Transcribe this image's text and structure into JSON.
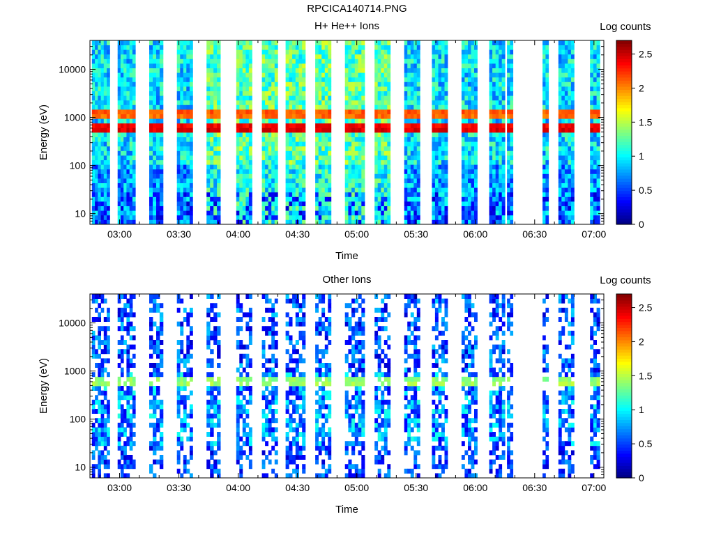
{
  "page_title": "RPCICA140714.PNG",
  "chart_data": [
    {
      "type": "heatmap",
      "title": "H+ He++ Ions",
      "xlabel": "Time",
      "ylabel": "Energy (eV)",
      "x_ticks": [
        "03:00",
        "03:30",
        "04:00",
        "04:30",
        "05:00",
        "05:30",
        "06:00",
        "06:30",
        "07:00"
      ],
      "y_ticks": [
        "10",
        "100",
        "1000",
        "10000"
      ],
      "y_scale": "log",
      "ylim": [
        6,
        40000
      ],
      "xlim": [
        "02:45",
        "07:05"
      ],
      "colorbar_label": "Log counts",
      "colorbar_ticks": [
        "0",
        "0.5",
        "1",
        "1.5",
        "2",
        "2.5"
      ],
      "colorbar_range": [
        0,
        2.7
      ],
      "colormap": "jet",
      "data_time_windows": [
        [
          "02:46",
          "02:55"
        ],
        [
          "02:59",
          "03:08"
        ],
        [
          "03:15",
          "03:22"
        ],
        [
          "03:29",
          "03:37"
        ],
        [
          "03:44",
          "03:51"
        ],
        [
          "03:59",
          "04:07"
        ],
        [
          "04:12",
          "04:20"
        ],
        [
          "04:24",
          "04:34"
        ],
        [
          "04:39",
          "04:47"
        ],
        [
          "04:54",
          "05:04"
        ],
        [
          "05:09",
          "05:17"
        ],
        [
          "05:24",
          "05:32"
        ],
        [
          "05:38",
          "05:46"
        ],
        [
          "05:53",
          "06:01"
        ],
        [
          "06:07",
          "06:15"
        ],
        [
          "06:16",
          "06:19"
        ],
        [
          "06:34",
          "06:37"
        ],
        [
          "06:42",
          "06:50"
        ],
        [
          "06:58",
          "07:03"
        ]
      ],
      "peak_bands": [
        {
          "energy_ev": 600,
          "log_counts": 2.6
        },
        {
          "energy_ev": 1200,
          "log_counts": 2.3
        }
      ],
      "grid": false
    },
    {
      "type": "heatmap",
      "title": "Other Ions",
      "xlabel": "Time",
      "ylabel": "Energy (eV)",
      "x_ticks": [
        "03:00",
        "03:30",
        "04:00",
        "04:30",
        "05:00",
        "05:30",
        "06:00",
        "06:30",
        "07:00"
      ],
      "y_ticks": [
        "10",
        "100",
        "1000",
        "10000"
      ],
      "y_scale": "log",
      "ylim": [
        6,
        40000
      ],
      "xlim": [
        "02:45",
        "07:05"
      ],
      "colorbar_label": "Log counts",
      "colorbar_ticks": [
        "0",
        "0.5",
        "1",
        "1.5",
        "2",
        "2.5"
      ],
      "colorbar_range": [
        0,
        2.7
      ],
      "colormap": "jet",
      "data_time_windows": [
        [
          "02:46",
          "02:55"
        ],
        [
          "02:59",
          "03:08"
        ],
        [
          "03:15",
          "03:22"
        ],
        [
          "03:29",
          "03:37"
        ],
        [
          "03:44",
          "03:51"
        ],
        [
          "03:59",
          "04:07"
        ],
        [
          "04:12",
          "04:20"
        ],
        [
          "04:24",
          "04:34"
        ],
        [
          "04:39",
          "04:47"
        ],
        [
          "04:54",
          "05:04"
        ],
        [
          "05:09",
          "05:17"
        ],
        [
          "05:24",
          "05:32"
        ],
        [
          "05:38",
          "05:46"
        ],
        [
          "05:53",
          "06:01"
        ],
        [
          "06:07",
          "06:15"
        ],
        [
          "06:16",
          "06:19"
        ],
        [
          "06:34",
          "06:37"
        ],
        [
          "06:42",
          "06:50"
        ],
        [
          "06:58",
          "07:03"
        ]
      ],
      "peak_bands": [
        {
          "energy_ev": 600,
          "log_counts": 1.6
        }
      ],
      "grid": false
    }
  ]
}
